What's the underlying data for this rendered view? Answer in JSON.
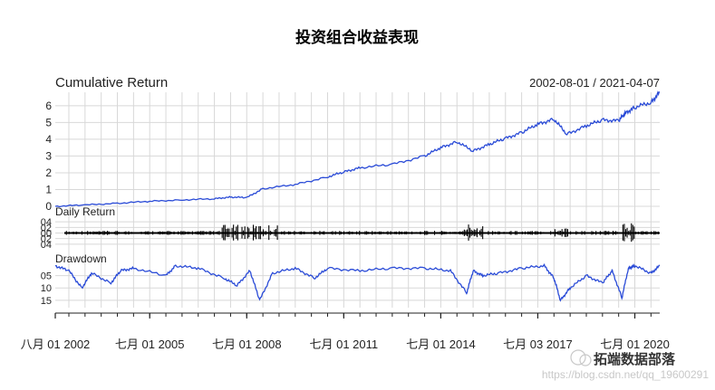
{
  "chart_data": {
    "type": "line",
    "title": "投资组合收益表现",
    "date_range": "2002-08-01 / 2021-04-07",
    "x_tick_labels": [
      "八月 01 2002",
      "七月 01 2005",
      "七月 01 2008",
      "七月 01 2011",
      "七月 01 2014",
      "七月 03 2017",
      "七月 01 2020"
    ],
    "panels": [
      {
        "name": "Cumulative Return",
        "ylim": [
          0,
          6.8
        ],
        "yticks": [
          "0",
          "1",
          "2",
          "3",
          "4",
          "5",
          "6"
        ],
        "series": [
          {
            "color": "#2a4bd7",
            "x": [
              2002.58,
              2003.5,
              2004.5,
              2005.5,
              2006.5,
              2007.5,
              2008.0,
              2008.5,
              2009.0,
              2010.0,
              2011.0,
              2011.5,
              2012.0,
              2013.0,
              2014.0,
              2014.5,
              2015.0,
              2015.5,
              2016.0,
              2016.5,
              2017.0,
              2017.5,
              2018.0,
              2018.4,
              2019.0,
              2019.5,
              2020.0,
              2020.2,
              2020.5,
              2021.0,
              2021.27
            ],
            "y": [
              0.0,
              0.08,
              0.18,
              0.3,
              0.38,
              0.45,
              0.55,
              0.52,
              1.05,
              1.3,
              1.75,
              2.05,
              2.3,
              2.5,
              3.0,
              3.5,
              3.85,
              3.3,
              3.7,
              4.05,
              4.4,
              4.9,
              5.2,
              4.3,
              4.8,
              5.15,
              5.1,
              5.55,
              5.9,
              6.2,
              6.8
            ]
          }
        ]
      },
      {
        "name": "Daily Return",
        "ylim": [
          -0.06,
          0.06
        ],
        "yticks": [
          "04",
          "02",
          "00",
          "02",
          "04"
        ]
      },
      {
        "name": "Drawdown",
        "ylim": [
          -0.18,
          0.0
        ],
        "yticks": [
          "05",
          "10",
          "15"
        ],
        "series": [
          {
            "color": "#2a4bd7",
            "x": [
              2002.58,
              2003.0,
              2003.4,
              2003.7,
              2004.3,
              2004.6,
              2005.0,
              2006.0,
              2006.3,
              2007.0,
              2007.8,
              2008.2,
              2008.6,
              2008.9,
              2009.3,
              2010.0,
              2010.6,
              2011.0,
              2012.0,
              2013.0,
              2014.0,
              2014.8,
              2015.3,
              2015.5,
              2015.8,
              2016.3,
              2017.0,
              2017.7,
              2018.0,
              2018.2,
              2018.5,
              2019.0,
              2019.5,
              2019.8,
              2020.1,
              2020.3,
              2020.5,
              2021.0,
              2021.27
            ],
            "y": [
              -0.01,
              -0.03,
              -0.1,
              -0.04,
              -0.08,
              -0.03,
              -0.02,
              -0.05,
              -0.01,
              -0.02,
              -0.06,
              -0.09,
              -0.03,
              -0.15,
              -0.04,
              -0.02,
              -0.06,
              -0.02,
              -0.03,
              -0.02,
              -0.02,
              -0.03,
              -0.12,
              -0.03,
              -0.05,
              -0.04,
              -0.02,
              -0.01,
              -0.06,
              -0.15,
              -0.1,
              -0.05,
              -0.08,
              -0.03,
              -0.14,
              -0.02,
              -0.01,
              -0.04,
              -0.01
            ]
          }
        ]
      }
    ]
  },
  "watermark": {
    "brand": "拓端数据部落",
    "url": "https://blog.csdn.net/qq_19600291"
  }
}
